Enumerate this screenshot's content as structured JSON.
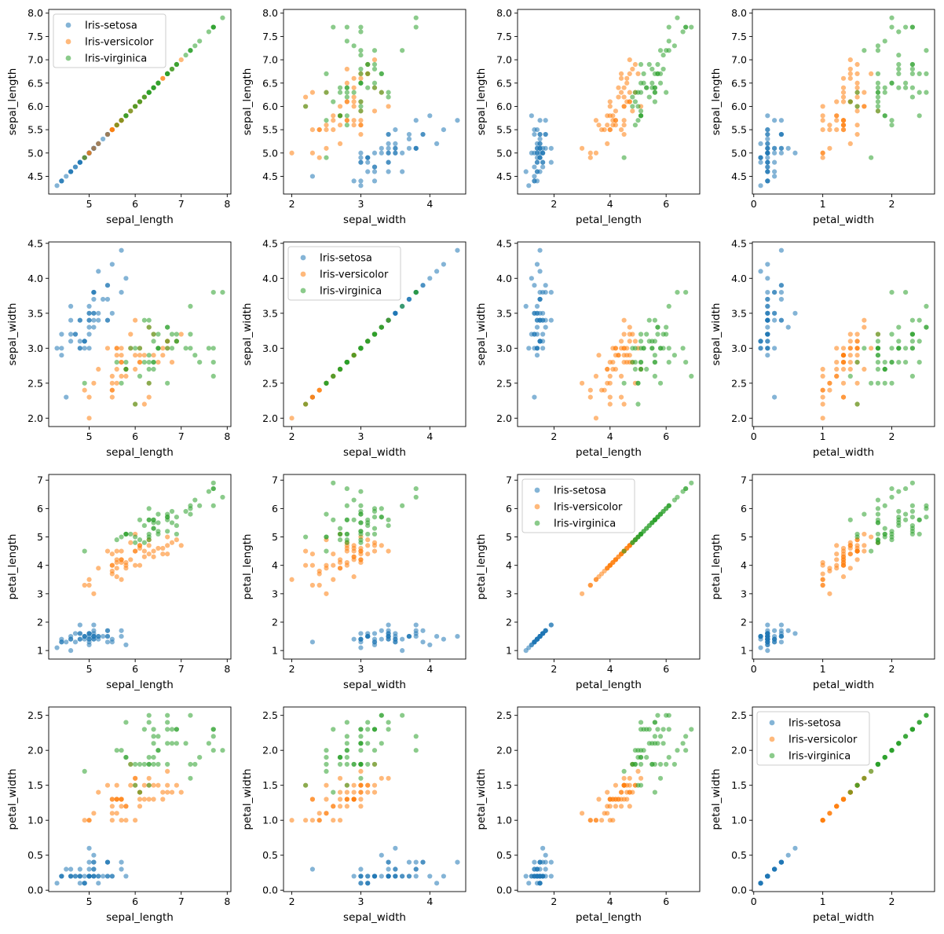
{
  "chart_data": {
    "type": "scatter",
    "layout": "4x4 pairplot",
    "variables": [
      "sepal_length",
      "sepal_width",
      "petal_length",
      "petal_width"
    ],
    "ranges": {
      "sepal_length": [
        4.12,
        8.08
      ],
      "sepal_width": [
        1.88,
        4.52
      ],
      "petal_length": [
        0.7,
        7.2
      ],
      "petal_width": [
        -0.02,
        2.62
      ]
    },
    "ticks": {
      "sepal_length": {
        "axis_x": [
          "5",
          "6",
          "7",
          "8"
        ],
        "axis_y": [
          "4.5",
          "5.0",
          "5.5",
          "6.0",
          "6.5",
          "7.0",
          "7.5",
          "8.0"
        ]
      },
      "sepal_width": {
        "axis_x": [
          "2",
          "3",
          "4"
        ],
        "axis_y": [
          "2.0",
          "2.5",
          "3.0",
          "3.5",
          "4.0",
          "4.5"
        ]
      },
      "petal_length": {
        "axis_x": [
          "2",
          "4",
          "6"
        ],
        "axis_y": [
          "1",
          "2",
          "3",
          "4",
          "5",
          "6",
          "7"
        ]
      },
      "petal_width": {
        "axis_x": [
          "0",
          "1",
          "2"
        ],
        "axis_y": [
          "0.0",
          "0.5",
          "1.0",
          "1.5",
          "2.0",
          "2.5"
        ]
      }
    },
    "legend_subplots": [
      [
        0,
        0
      ],
      [
        1,
        1
      ],
      [
        2,
        2
      ],
      [
        3,
        3
      ]
    ],
    "legend_placement": "upper-left",
    "marker_alpha": 0.55,
    "grid": false,
    "series": [
      {
        "name": "Iris-setosa",
        "color": "#1f77b4",
        "points": [
          [
            5.1,
            3.5,
            1.4,
            0.2
          ],
          [
            4.9,
            3.0,
            1.4,
            0.2
          ],
          [
            4.7,
            3.2,
            1.3,
            0.2
          ],
          [
            4.6,
            3.1,
            1.5,
            0.2
          ],
          [
            5.0,
            3.6,
            1.4,
            0.2
          ],
          [
            5.4,
            3.9,
            1.7,
            0.4
          ],
          [
            4.6,
            3.4,
            1.4,
            0.3
          ],
          [
            5.0,
            3.4,
            1.5,
            0.2
          ],
          [
            4.4,
            2.9,
            1.4,
            0.2
          ],
          [
            4.9,
            3.1,
            1.5,
            0.1
          ],
          [
            5.4,
            3.7,
            1.5,
            0.2
          ],
          [
            4.8,
            3.4,
            1.6,
            0.2
          ],
          [
            4.8,
            3.0,
            1.4,
            0.1
          ],
          [
            4.3,
            3.0,
            1.1,
            0.1
          ],
          [
            5.8,
            4.0,
            1.2,
            0.2
          ],
          [
            5.7,
            4.4,
            1.5,
            0.4
          ],
          [
            5.4,
            3.9,
            1.3,
            0.4
          ],
          [
            5.1,
            3.5,
            1.4,
            0.3
          ],
          [
            5.7,
            3.8,
            1.7,
            0.3
          ],
          [
            5.1,
            3.8,
            1.5,
            0.3
          ],
          [
            5.4,
            3.4,
            1.7,
            0.2
          ],
          [
            5.1,
            3.7,
            1.5,
            0.4
          ],
          [
            4.6,
            3.6,
            1.0,
            0.2
          ],
          [
            5.1,
            3.3,
            1.7,
            0.5
          ],
          [
            4.8,
            3.4,
            1.9,
            0.2
          ],
          [
            5.0,
            3.0,
            1.6,
            0.2
          ],
          [
            5.0,
            3.4,
            1.6,
            0.4
          ],
          [
            5.2,
            3.5,
            1.5,
            0.2
          ],
          [
            5.2,
            3.4,
            1.4,
            0.2
          ],
          [
            4.7,
            3.2,
            1.6,
            0.2
          ],
          [
            4.8,
            3.1,
            1.6,
            0.2
          ],
          [
            5.4,
            3.4,
            1.5,
            0.4
          ],
          [
            5.2,
            4.1,
            1.5,
            0.1
          ],
          [
            5.5,
            4.2,
            1.4,
            0.2
          ],
          [
            4.9,
            3.1,
            1.5,
            0.1
          ],
          [
            5.0,
            3.2,
            1.2,
            0.2
          ],
          [
            5.5,
            3.5,
            1.3,
            0.2
          ],
          [
            4.9,
            3.1,
            1.5,
            0.1
          ],
          [
            4.4,
            3.0,
            1.3,
            0.2
          ],
          [
            5.1,
            3.4,
            1.5,
            0.2
          ],
          [
            5.0,
            3.5,
            1.3,
            0.3
          ],
          [
            4.5,
            2.3,
            1.3,
            0.3
          ],
          [
            4.4,
            3.2,
            1.3,
            0.2
          ],
          [
            5.0,
            3.5,
            1.6,
            0.6
          ],
          [
            5.1,
            3.8,
            1.9,
            0.4
          ],
          [
            4.8,
            3.0,
            1.4,
            0.3
          ],
          [
            5.1,
            3.8,
            1.6,
            0.2
          ],
          [
            4.6,
            3.2,
            1.4,
            0.2
          ],
          [
            5.3,
            3.7,
            1.5,
            0.2
          ],
          [
            5.0,
            3.3,
            1.4,
            0.2
          ]
        ]
      },
      {
        "name": "Iris-versicolor",
        "color": "#ff7f0e",
        "points": [
          [
            7.0,
            3.2,
            4.7,
            1.4
          ],
          [
            6.4,
            3.2,
            4.5,
            1.5
          ],
          [
            6.9,
            3.1,
            4.9,
            1.5
          ],
          [
            5.5,
            2.3,
            4.0,
            1.3
          ],
          [
            6.5,
            2.8,
            4.6,
            1.5
          ],
          [
            5.7,
            2.8,
            4.5,
            1.3
          ],
          [
            6.3,
            3.3,
            4.7,
            1.6
          ],
          [
            4.9,
            2.4,
            3.3,
            1.0
          ],
          [
            6.6,
            2.9,
            4.6,
            1.3
          ],
          [
            5.2,
            2.7,
            3.9,
            1.4
          ],
          [
            5.0,
            2.0,
            3.5,
            1.0
          ],
          [
            5.9,
            3.0,
            4.2,
            1.5
          ],
          [
            6.0,
            2.2,
            4.0,
            1.0
          ],
          [
            6.1,
            2.9,
            4.7,
            1.4
          ],
          [
            5.6,
            2.9,
            3.6,
            1.3
          ],
          [
            6.7,
            3.1,
            4.4,
            1.4
          ],
          [
            5.6,
            3.0,
            4.5,
            1.5
          ],
          [
            5.8,
            2.7,
            4.1,
            1.0
          ],
          [
            6.2,
            2.2,
            4.5,
            1.5
          ],
          [
            5.6,
            2.5,
            3.9,
            1.1
          ],
          [
            5.9,
            3.2,
            4.8,
            1.8
          ],
          [
            6.1,
            2.8,
            4.0,
            1.3
          ],
          [
            6.3,
            2.5,
            4.9,
            1.5
          ],
          [
            6.1,
            2.8,
            4.7,
            1.2
          ],
          [
            6.4,
            2.9,
            4.3,
            1.3
          ],
          [
            6.6,
            3.0,
            4.4,
            1.4
          ],
          [
            6.8,
            2.8,
            4.8,
            1.4
          ],
          [
            6.7,
            3.0,
            5.0,
            1.7
          ],
          [
            6.0,
            2.9,
            4.5,
            1.5
          ],
          [
            5.7,
            2.6,
            3.5,
            1.0
          ],
          [
            5.5,
            2.4,
            3.8,
            1.1
          ],
          [
            5.5,
            2.4,
            3.7,
            1.0
          ],
          [
            5.8,
            2.7,
            3.9,
            1.2
          ],
          [
            6.0,
            2.7,
            5.1,
            1.6
          ],
          [
            5.4,
            3.0,
            4.5,
            1.5
          ],
          [
            6.0,
            3.4,
            4.5,
            1.6
          ],
          [
            6.7,
            3.1,
            4.7,
            1.5
          ],
          [
            6.3,
            2.3,
            4.4,
            1.3
          ],
          [
            5.6,
            3.0,
            4.1,
            1.3
          ],
          [
            5.5,
            2.5,
            4.0,
            1.3
          ],
          [
            5.5,
            2.6,
            4.4,
            1.2
          ],
          [
            6.1,
            3.0,
            4.6,
            1.4
          ],
          [
            5.8,
            2.6,
            4.0,
            1.2
          ],
          [
            5.0,
            2.3,
            3.3,
            1.0
          ],
          [
            5.6,
            2.7,
            4.2,
            1.3
          ],
          [
            5.7,
            3.0,
            4.2,
            1.2
          ],
          [
            5.7,
            2.9,
            4.2,
            1.3
          ],
          [
            6.2,
            2.9,
            4.3,
            1.3
          ],
          [
            5.1,
            2.5,
            3.0,
            1.1
          ],
          [
            5.7,
            2.8,
            4.1,
            1.3
          ]
        ]
      },
      {
        "name": "Iris-virginica",
        "color": "#2ca02c",
        "points": [
          [
            6.3,
            3.3,
            6.0,
            2.5
          ],
          [
            5.8,
            2.7,
            5.1,
            1.9
          ],
          [
            7.1,
            3.0,
            5.9,
            2.1
          ],
          [
            6.3,
            2.9,
            5.6,
            1.8
          ],
          [
            6.5,
            3.0,
            5.8,
            2.2
          ],
          [
            7.6,
            3.0,
            6.6,
            2.1
          ],
          [
            4.9,
            2.5,
            4.5,
            1.7
          ],
          [
            7.3,
            2.9,
            6.3,
            1.8
          ],
          [
            6.7,
            2.5,
            5.8,
            1.8
          ],
          [
            7.2,
            3.6,
            6.1,
            2.5
          ],
          [
            6.5,
            3.2,
            5.1,
            2.0
          ],
          [
            6.4,
            2.7,
            5.3,
            1.9
          ],
          [
            6.8,
            3.0,
            5.5,
            2.1
          ],
          [
            5.7,
            2.5,
            5.0,
            2.0
          ],
          [
            5.8,
            2.8,
            5.1,
            2.4
          ],
          [
            6.4,
            3.2,
            5.3,
            2.3
          ],
          [
            6.5,
            3.0,
            5.5,
            1.8
          ],
          [
            7.7,
            3.8,
            6.7,
            2.2
          ],
          [
            7.7,
            2.6,
            6.9,
            2.3
          ],
          [
            6.0,
            2.2,
            5.0,
            1.5
          ],
          [
            6.9,
            3.2,
            5.7,
            2.3
          ],
          [
            5.6,
            2.8,
            4.9,
            2.0
          ],
          [
            7.7,
            2.8,
            6.7,
            2.0
          ],
          [
            6.3,
            2.7,
            4.9,
            1.8
          ],
          [
            6.7,
            3.3,
            5.7,
            2.1
          ],
          [
            7.2,
            3.2,
            6.0,
            1.8
          ],
          [
            6.2,
            2.8,
            4.8,
            1.8
          ],
          [
            6.1,
            3.0,
            4.9,
            1.8
          ],
          [
            6.4,
            2.8,
            5.6,
            2.1
          ],
          [
            7.2,
            3.0,
            5.8,
            1.6
          ],
          [
            7.4,
            2.8,
            6.1,
            1.9
          ],
          [
            7.9,
            3.8,
            6.4,
            2.0
          ],
          [
            6.4,
            2.8,
            5.6,
            2.2
          ],
          [
            6.3,
            2.8,
            5.1,
            1.5
          ],
          [
            6.1,
            2.6,
            5.6,
            1.4
          ],
          [
            7.7,
            3.0,
            6.1,
            2.3
          ],
          [
            6.3,
            3.4,
            5.6,
            2.4
          ],
          [
            6.4,
            3.1,
            5.5,
            1.8
          ],
          [
            6.0,
            3.0,
            4.8,
            1.8
          ],
          [
            6.9,
            3.1,
            5.4,
            2.1
          ],
          [
            6.7,
            3.1,
            5.6,
            2.4
          ],
          [
            6.9,
            3.1,
            5.1,
            2.3
          ],
          [
            5.8,
            2.7,
            5.1,
            1.9
          ],
          [
            6.8,
            3.2,
            5.9,
            2.3
          ],
          [
            6.7,
            3.3,
            5.7,
            2.5
          ],
          [
            6.7,
            3.0,
            5.2,
            2.3
          ],
          [
            6.3,
            2.5,
            5.0,
            1.9
          ],
          [
            6.5,
            3.0,
            5.2,
            2.0
          ],
          [
            6.2,
            3.4,
            5.4,
            2.3
          ],
          [
            5.9,
            3.0,
            5.1,
            1.8
          ]
        ]
      }
    ]
  }
}
